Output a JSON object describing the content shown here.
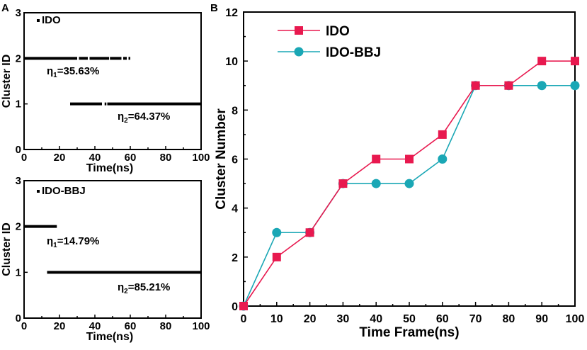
{
  "chart_data": [
    {
      "panel_label": "A",
      "type": "scatter",
      "subtype": "cluster-timeline",
      "legend": "IDO",
      "xlabel": "Time(ns)",
      "ylabel": "Cluster ID",
      "xlim": [
        0,
        100
      ],
      "ylim": [
        0,
        3
      ],
      "xticks": [
        "0",
        "20",
        "40",
        "60",
        "80",
        "100"
      ],
      "yticks": [
        "0",
        "1",
        "2",
        "3"
      ],
      "segments": [
        {
          "cluster": 2,
          "from": 0,
          "to": 30
        },
        {
          "cluster": 2,
          "from": 31,
          "to": 36
        },
        {
          "cluster": 2,
          "from": 37,
          "to": 48
        },
        {
          "cluster": 2,
          "from": 48.5,
          "to": 55
        },
        {
          "cluster": 2,
          "from": 56,
          "to": 58
        },
        {
          "cluster": 2,
          "from": 59,
          "to": 60
        },
        {
          "cluster": 1,
          "from": 26,
          "to": 44
        },
        {
          "cluster": 1,
          "from": 45.5,
          "to": 46.5
        },
        {
          "cluster": 1,
          "from": 47,
          "to": 100
        }
      ],
      "annotations": [
        {
          "sym": "η",
          "sub": "1",
          "val": "=35.63%"
        },
        {
          "sym": "η",
          "sub": "2",
          "val": "=64.37%"
        }
      ]
    },
    {
      "panel_label": "",
      "type": "scatter",
      "subtype": "cluster-timeline",
      "legend": "IDO-BBJ",
      "xlabel": "Time(ns)",
      "ylabel": "Cluster ID",
      "xlim": [
        0,
        100
      ],
      "ylim": [
        0,
        3
      ],
      "xticks": [
        "0",
        "20",
        "40",
        "60",
        "80",
        "100"
      ],
      "yticks": [
        "0",
        "1",
        "2",
        "3"
      ],
      "segments": [
        {
          "cluster": 2,
          "from": 0,
          "to": 18.5
        },
        {
          "cluster": 1,
          "from": 13,
          "to": 100
        }
      ],
      "annotations": [
        {
          "sym": "η",
          "sub": "1",
          "val": "=14.79%"
        },
        {
          "sym": "η",
          "sub": "2",
          "val": "=85.21%"
        }
      ]
    },
    {
      "panel_label": "B",
      "type": "line",
      "xlabel": "Time Frame(ns)",
      "ylabel": "Cluster Number",
      "xlim": [
        0,
        100
      ],
      "ylim": [
        0,
        12
      ],
      "x": [
        0,
        10,
        20,
        30,
        40,
        50,
        60,
        70,
        80,
        90,
        100
      ],
      "xticks": [
        "0",
        "10",
        "20",
        "30",
        "40",
        "50",
        "60",
        "70",
        "80",
        "90",
        "100"
      ],
      "yticks": [
        "0",
        "2",
        "4",
        "6",
        "8",
        "10",
        "12"
      ],
      "series": [
        {
          "name": "IDO",
          "marker": "square",
          "color": "#E8194F",
          "values": [
            0,
            2,
            3,
            5,
            6,
            6,
            7,
            9,
            9,
            10,
            10
          ]
        },
        {
          "name": "IDO-BBJ",
          "marker": "circle",
          "color": "#1AA7B5",
          "values": [
            0,
            3,
            3,
            5,
            5,
            5,
            6,
            9,
            9,
            9,
            9
          ]
        }
      ]
    }
  ]
}
